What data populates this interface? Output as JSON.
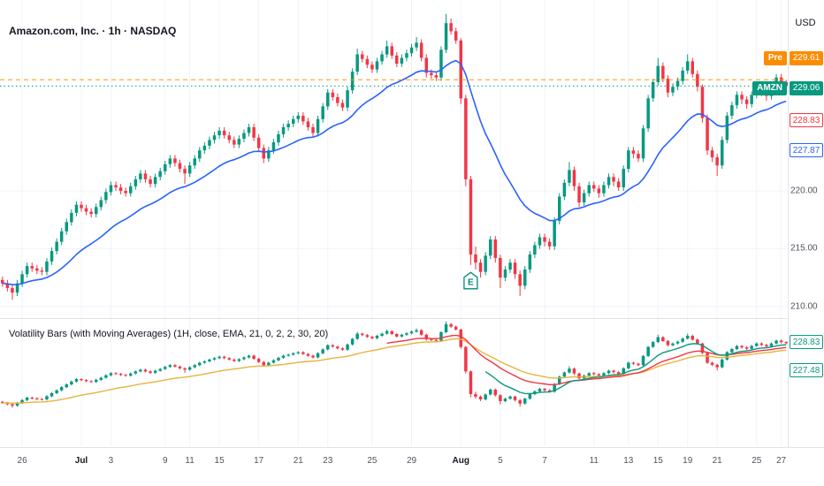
{
  "header": {
    "title": "Amazon.com, Inc. · 1h · NASDAQ"
  },
  "indicator": {
    "title": "Volatility Bars (with Moving Averages) (1H, close, EMA, 21, 0, 2, 2, 30, 20)"
  },
  "axis": {
    "currency": "USD",
    "price_ticks": [
      {
        "label": "220.00",
        "value": 220
      },
      {
        "label": "215.00",
        "value": 215
      },
      {
        "label": "210.00",
        "value": 210
      }
    ],
    "floating_labels": [
      {
        "tag": "Pre",
        "price": "229.61",
        "bg": "#fb8c00",
        "fg": "#ffffff"
      },
      {
        "tag": "AMZN",
        "price": "229.06",
        "bg": "#089981",
        "fg": "#ffffff"
      },
      {
        "price": "228.83",
        "bg": "#ffffff",
        "fg": "#f23645",
        "border": "#f23645"
      },
      {
        "price": "227.87",
        "bg": "#ffffff",
        "fg": "#2962ff",
        "border": "#2962ff"
      }
    ],
    "indicator_labels": [
      {
        "price": "228.83",
        "bg": "#ffffff",
        "fg": "#089981",
        "border": "#089981"
      },
      {
        "price": "227.48",
        "bg": "#ffffff",
        "fg": "#089981",
        "border": "#089981"
      }
    ]
  },
  "colors": {
    "up": "#089981",
    "down": "#f23645",
    "grid": "#f0f3fa",
    "axis_text": "#50535e"
  },
  "chart_data": {
    "type": "candlestick",
    "symbol": "AMZN",
    "exchange": "NASDAQ",
    "interval": "1h",
    "currency": "USD",
    "last_price": 229.06,
    "premarket_price": 229.61,
    "price_panel": {
      "ylim": [
        209.0,
        236.5
      ],
      "grid_values": [
        210,
        215,
        220
      ],
      "ema_overlay": {
        "period": 21,
        "color": "#2962ff",
        "last_value": 227.87
      },
      "hlines": [
        {
          "value": 229.61,
          "style": "dashed",
          "color": "#ff9800",
          "name": "premarket-price-line"
        },
        {
          "value": 229.06,
          "style": "dotted",
          "color": "#089981",
          "name": "last-price-line"
        }
      ],
      "earnings_marker": {
        "index": 95,
        "label": "E",
        "color": "#00897b"
      }
    },
    "indicator_panel": {
      "ylim": [
        199.6,
        236.0
      ],
      "ma_lines": [
        {
          "period": 30,
          "color": "#e5b43c",
          "from": 0
        },
        {
          "period": 20,
          "color": "#f23645",
          "from": 78
        },
        {
          "period": 10,
          "color": "#089981",
          "from": 98
        }
      ]
    },
    "x_labels": [
      {
        "label": "26",
        "index": 4
      },
      {
        "label": "Jul",
        "index": 16,
        "month": true
      },
      {
        "label": "3",
        "index": 22
      },
      {
        "label": "9",
        "index": 33
      },
      {
        "label": "11",
        "index": 38
      },
      {
        "label": "15",
        "index": 44
      },
      {
        "label": "17",
        "index": 52
      },
      {
        "label": "21",
        "index": 60
      },
      {
        "label": "23",
        "index": 66
      },
      {
        "label": "25",
        "index": 75
      },
      {
        "label": "29",
        "index": 83
      },
      {
        "label": "Aug",
        "index": 93,
        "month": true
      },
      {
        "label": "5",
        "index": 101
      },
      {
        "label": "7",
        "index": 110
      },
      {
        "label": "11",
        "index": 120
      },
      {
        "label": "13",
        "index": 127
      },
      {
        "label": "15",
        "index": 133
      },
      {
        "label": "19",
        "index": 139
      },
      {
        "label": "21",
        "index": 145
      },
      {
        "label": "25",
        "index": 153
      },
      {
        "label": "27",
        "index": 158
      }
    ],
    "candles": [
      [
        212.3,
        212.6,
        211.7,
        212.0
      ],
      [
        212.0,
        212.3,
        211.3,
        211.6
      ],
      [
        211.6,
        211.9,
        210.6,
        211.2
      ],
      [
        211.2,
        212.3,
        210.9,
        212.0
      ],
      [
        212.0,
        213.1,
        211.7,
        212.8
      ],
      [
        212.8,
        213.8,
        212.5,
        213.5
      ],
      [
        213.5,
        213.8,
        213.0,
        213.3
      ],
      [
        213.3,
        213.6,
        212.8,
        213.1
      ],
      [
        213.1,
        213.4,
        212.7,
        213.0
      ],
      [
        213.0,
        214.2,
        212.7,
        213.9
      ],
      [
        213.9,
        215.1,
        213.6,
        214.8
      ],
      [
        214.8,
        215.9,
        214.5,
        215.6
      ],
      [
        215.6,
        216.8,
        215.3,
        216.5
      ],
      [
        216.5,
        217.6,
        216.2,
        217.3
      ],
      [
        217.3,
        218.4,
        217.0,
        218.1
      ],
      [
        218.1,
        219.1,
        217.8,
        218.8
      ],
      [
        218.8,
        219.1,
        218.2,
        218.5
      ],
      [
        218.5,
        218.8,
        217.9,
        218.2
      ],
      [
        218.2,
        218.5,
        217.7,
        218.0
      ],
      [
        218.0,
        218.9,
        217.7,
        218.6
      ],
      [
        218.6,
        219.5,
        218.3,
        219.2
      ],
      [
        219.2,
        220.2,
        218.9,
        219.9
      ],
      [
        219.9,
        220.8,
        219.6,
        220.5
      ],
      [
        220.5,
        220.8,
        220.0,
        220.3
      ],
      [
        220.3,
        220.6,
        219.7,
        220.0
      ],
      [
        220.0,
        220.3,
        219.5,
        219.8
      ],
      [
        219.8,
        220.7,
        219.5,
        220.4
      ],
      [
        220.4,
        221.3,
        220.1,
        221.0
      ],
      [
        221.0,
        221.8,
        220.7,
        221.5
      ],
      [
        221.5,
        221.8,
        220.7,
        221.0
      ],
      [
        221.0,
        221.3,
        220.3,
        220.6
      ],
      [
        220.6,
        221.5,
        220.3,
        221.2
      ],
      [
        221.2,
        222.0,
        220.9,
        221.7
      ],
      [
        221.7,
        222.6,
        221.4,
        222.3
      ],
      [
        222.3,
        223.1,
        222.0,
        222.8
      ],
      [
        222.8,
        223.1,
        222.1,
        222.4
      ],
      [
        222.4,
        222.7,
        221.6,
        221.9
      ],
      [
        221.9,
        222.2,
        220.6,
        221.5
      ],
      [
        221.5,
        222.5,
        221.2,
        222.2
      ],
      [
        222.2,
        223.1,
        221.9,
        222.8
      ],
      [
        222.8,
        223.8,
        222.5,
        223.5
      ],
      [
        223.5,
        224.2,
        223.2,
        223.9
      ],
      [
        223.9,
        224.7,
        223.6,
        224.4
      ],
      [
        224.4,
        225.1,
        224.1,
        224.8
      ],
      [
        224.8,
        225.5,
        224.5,
        225.2
      ],
      [
        225.2,
        225.5,
        224.5,
        224.8
      ],
      [
        224.8,
        225.1,
        224.1,
        224.4
      ],
      [
        224.4,
        224.7,
        223.7,
        224.0
      ],
      [
        224.0,
        224.8,
        223.7,
        224.5
      ],
      [
        224.5,
        225.3,
        224.2,
        225.0
      ],
      [
        225.0,
        225.8,
        224.7,
        225.5
      ],
      [
        225.5,
        225.8,
        224.3,
        224.6
      ],
      [
        224.6,
        224.9,
        223.4,
        223.7
      ],
      [
        223.7,
        224.0,
        222.4,
        222.8
      ],
      [
        222.8,
        223.8,
        222.5,
        223.5
      ],
      [
        223.5,
        224.5,
        223.2,
        224.2
      ],
      [
        224.2,
        225.2,
        223.9,
        224.9
      ],
      [
        224.9,
        225.8,
        224.6,
        225.5
      ],
      [
        225.5,
        226.1,
        225.2,
        225.8
      ],
      [
        225.8,
        226.5,
        225.5,
        226.2
      ],
      [
        226.2,
        226.8,
        225.9,
        226.5
      ],
      [
        226.5,
        226.8,
        225.7,
        226.0
      ],
      [
        226.0,
        226.3,
        225.2,
        225.5
      ],
      [
        225.5,
        225.8,
        224.7,
        225.0
      ],
      [
        225.0,
        226.5,
        224.7,
        226.2
      ],
      [
        226.2,
        227.6,
        225.9,
        227.3
      ],
      [
        227.3,
        228.8,
        227.0,
        228.5
      ],
      [
        228.5,
        228.8,
        227.8,
        228.1
      ],
      [
        228.1,
        228.4,
        227.3,
        227.6
      ],
      [
        227.6,
        227.9,
        226.9,
        227.2
      ],
      [
        227.2,
        229.0,
        226.9,
        228.7
      ],
      [
        228.7,
        230.6,
        228.4,
        230.3
      ],
      [
        230.3,
        232.3,
        230.0,
        231.8
      ],
      [
        231.8,
        232.1,
        231.1,
        231.4
      ],
      [
        231.4,
        231.7,
        230.6,
        230.9
      ],
      [
        230.9,
        231.2,
        230.2,
        230.5
      ],
      [
        230.5,
        231.5,
        230.2,
        231.2
      ],
      [
        231.2,
        232.1,
        230.9,
        231.8
      ],
      [
        231.8,
        233.0,
        231.5,
        232.5
      ],
      [
        232.5,
        232.8,
        231.4,
        231.7
      ],
      [
        231.7,
        232.0,
        230.7,
        231.0
      ],
      [
        231.0,
        231.8,
        230.7,
        231.5
      ],
      [
        231.5,
        232.2,
        231.2,
        231.9
      ],
      [
        231.9,
        232.7,
        231.6,
        232.4
      ],
      [
        232.4,
        233.3,
        232.1,
        232.8
      ],
      [
        232.8,
        233.1,
        231.2,
        231.5
      ],
      [
        231.5,
        231.8,
        229.8,
        230.2
      ],
      [
        230.2,
        230.5,
        229.7,
        230.0
      ],
      [
        230.0,
        230.3,
        229.5,
        229.8
      ],
      [
        229.8,
        232.5,
        229.5,
        232.2
      ],
      [
        232.2,
        235.3,
        231.9,
        234.5
      ],
      [
        234.5,
        234.9,
        233.5,
        233.8
      ],
      [
        233.8,
        234.1,
        232.7,
        233.0
      ],
      [
        233.0,
        233.2,
        227.5,
        228.0
      ],
      [
        228.0,
        228.3,
        220.4,
        221.0
      ],
      [
        221.0,
        221.3,
        213.6,
        214.5
      ],
      [
        214.5,
        215.2,
        213.2,
        213.8
      ],
      [
        213.8,
        214.1,
        212.5,
        213.0
      ],
      [
        213.0,
        214.7,
        212.7,
        214.4
      ],
      [
        214.4,
        216.1,
        214.1,
        215.8
      ],
      [
        215.8,
        216.1,
        213.8,
        214.2
      ],
      [
        214.2,
        214.5,
        211.6,
        212.5
      ],
      [
        212.5,
        213.5,
        212.2,
        213.2
      ],
      [
        213.2,
        214.1,
        212.9,
        213.8
      ],
      [
        213.8,
        214.1,
        212.4,
        212.8
      ],
      [
        212.8,
        213.1,
        210.9,
        211.8
      ],
      [
        211.8,
        213.5,
        211.5,
        213.2
      ],
      [
        213.2,
        214.8,
        212.9,
        214.5
      ],
      [
        214.5,
        215.6,
        214.2,
        215.3
      ],
      [
        215.3,
        216.3,
        215.0,
        216.0
      ],
      [
        216.0,
        216.3,
        215.2,
        215.6
      ],
      [
        215.6,
        215.9,
        214.9,
        215.2
      ],
      [
        215.2,
        217.7,
        214.9,
        217.4
      ],
      [
        217.4,
        219.8,
        217.1,
        219.5
      ],
      [
        219.5,
        221.0,
        219.2,
        220.7
      ],
      [
        220.7,
        222.5,
        220.4,
        221.8
      ],
      [
        221.8,
        222.1,
        220.0,
        220.4
      ],
      [
        220.4,
        220.7,
        218.6,
        219.0
      ],
      [
        219.0,
        220.1,
        218.7,
        219.8
      ],
      [
        219.8,
        220.8,
        219.5,
        220.5
      ],
      [
        220.5,
        220.8,
        219.9,
        220.2
      ],
      [
        220.2,
        220.5,
        219.4,
        219.8
      ],
      [
        219.8,
        220.8,
        219.5,
        220.5
      ],
      [
        220.5,
        221.5,
        220.2,
        221.2
      ],
      [
        221.2,
        221.5,
        220.4,
        220.8
      ],
      [
        220.8,
        221.1,
        220.0,
        220.3
      ],
      [
        220.3,
        222.2,
        220.0,
        221.9
      ],
      [
        221.9,
        223.8,
        221.6,
        223.5
      ],
      [
        223.5,
        223.8,
        222.8,
        223.2
      ],
      [
        223.2,
        223.5,
        222.5,
        222.8
      ],
      [
        222.8,
        225.7,
        222.5,
        225.4
      ],
      [
        225.4,
        228.3,
        225.1,
        228.0
      ],
      [
        228.0,
        229.7,
        227.7,
        229.4
      ],
      [
        229.4,
        231.5,
        229.1,
        230.8
      ],
      [
        230.8,
        231.1,
        229.4,
        229.7
      ],
      [
        229.7,
        230.0,
        228.1,
        228.5
      ],
      [
        228.5,
        229.3,
        228.2,
        229.0
      ],
      [
        229.0,
        229.8,
        228.7,
        229.5
      ],
      [
        229.5,
        230.7,
        229.2,
        230.4
      ],
      [
        230.4,
        231.8,
        230.1,
        231.2
      ],
      [
        231.2,
        231.5,
        229.8,
        230.1
      ],
      [
        230.1,
        230.4,
        228.6,
        229.0
      ],
      [
        229.0,
        229.2,
        225.9,
        226.3
      ],
      [
        226.3,
        226.6,
        223.1,
        223.5
      ],
      [
        223.5,
        223.8,
        222.5,
        222.9
      ],
      [
        222.9,
        223.2,
        221.3,
        222.2
      ],
      [
        222.2,
        224.7,
        221.9,
        224.4
      ],
      [
        224.4,
        226.8,
        224.1,
        226.5
      ],
      [
        226.5,
        227.7,
        226.2,
        227.4
      ],
      [
        227.4,
        228.6,
        227.1,
        228.3
      ],
      [
        228.3,
        228.6,
        227.5,
        227.9
      ],
      [
        227.9,
        228.2,
        227.1,
        227.5
      ],
      [
        227.5,
        228.6,
        227.2,
        228.3
      ],
      [
        228.3,
        229.3,
        228.0,
        229.0
      ],
      [
        229.0,
        229.3,
        228.2,
        228.6
      ],
      [
        228.6,
        228.9,
        227.8,
        228.2
      ],
      [
        228.2,
        229.3,
        227.9,
        229.0
      ],
      [
        229.0,
        230.1,
        228.7,
        229.8
      ],
      [
        229.8,
        230.1,
        229.0,
        229.4
      ],
      [
        229.4,
        229.6,
        228.8,
        229.06
      ]
    ]
  }
}
